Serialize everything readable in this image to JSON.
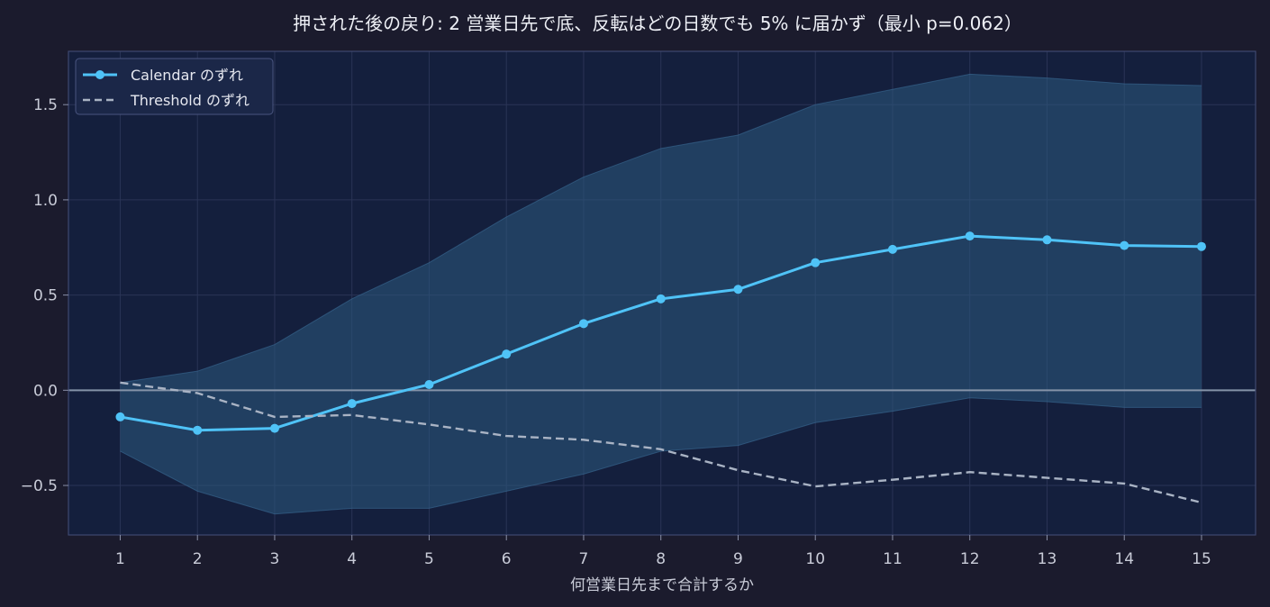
{
  "chart_data": {
    "type": "line",
    "title": "押された後の戻り: 2 営業日先で底、反転はどの日数でも 5% に届かず（最小 p=0.062）",
    "xlabel": "何営業日先まで合計するか",
    "ylabel": "",
    "x": [
      1,
      2,
      3,
      4,
      5,
      6,
      7,
      8,
      9,
      10,
      11,
      12,
      13,
      14,
      15
    ],
    "xlim": [
      0.33,
      15.7
    ],
    "ylim": [
      -0.76,
      1.78
    ],
    "x_ticks": [
      1,
      2,
      3,
      4,
      5,
      6,
      7,
      8,
      9,
      10,
      11,
      12,
      13,
      14,
      15
    ],
    "y_ticks": [
      -0.5,
      0.0,
      0.5,
      1.0,
      1.5
    ],
    "y_tick_labels": [
      "−0.5",
      "0.0",
      "0.5",
      "1.0",
      "1.5"
    ],
    "grid": true,
    "legend_position": "top-left",
    "zero_line": 0.0,
    "series": [
      {
        "name": "Calendar のずれ",
        "style": "solid",
        "markers": true,
        "color": "#4fc3f7",
        "values": [
          -0.14,
          -0.21,
          -0.2,
          -0.07,
          0.03,
          0.19,
          0.35,
          0.48,
          0.53,
          0.67,
          0.74,
          0.81,
          0.79,
          0.76,
          0.755
        ]
      },
      {
        "name": "Threshold のずれ",
        "style": "dashed",
        "markers": false,
        "color": "#a9b3c4",
        "values": [
          0.04,
          -0.015,
          -0.14,
          -0.13,
          -0.18,
          -0.24,
          -0.26,
          -0.31,
          -0.42,
          -0.505,
          -0.47,
          -0.43,
          -0.46,
          -0.49,
          -0.59
        ]
      }
    ],
    "band": {
      "color": "#2c5a80",
      "upper": [
        0.04,
        0.1,
        0.24,
        0.48,
        0.67,
        0.91,
        1.12,
        1.27,
        1.34,
        1.5,
        1.58,
        1.66,
        1.64,
        1.61,
        1.6
      ],
      "lower": [
        -0.32,
        -0.53,
        -0.65,
        -0.62,
        -0.62,
        -0.53,
        -0.44,
        -0.32,
        -0.29,
        -0.17,
        -0.11,
        -0.04,
        -0.06,
        -0.09,
        -0.09
      ]
    }
  },
  "colors": {
    "page_background": "#1b1b2d",
    "plot_background": "#141f3d",
    "grid": "#2a3456",
    "zero_line": "#8593a8",
    "axis_frame": "#3e4870"
  }
}
